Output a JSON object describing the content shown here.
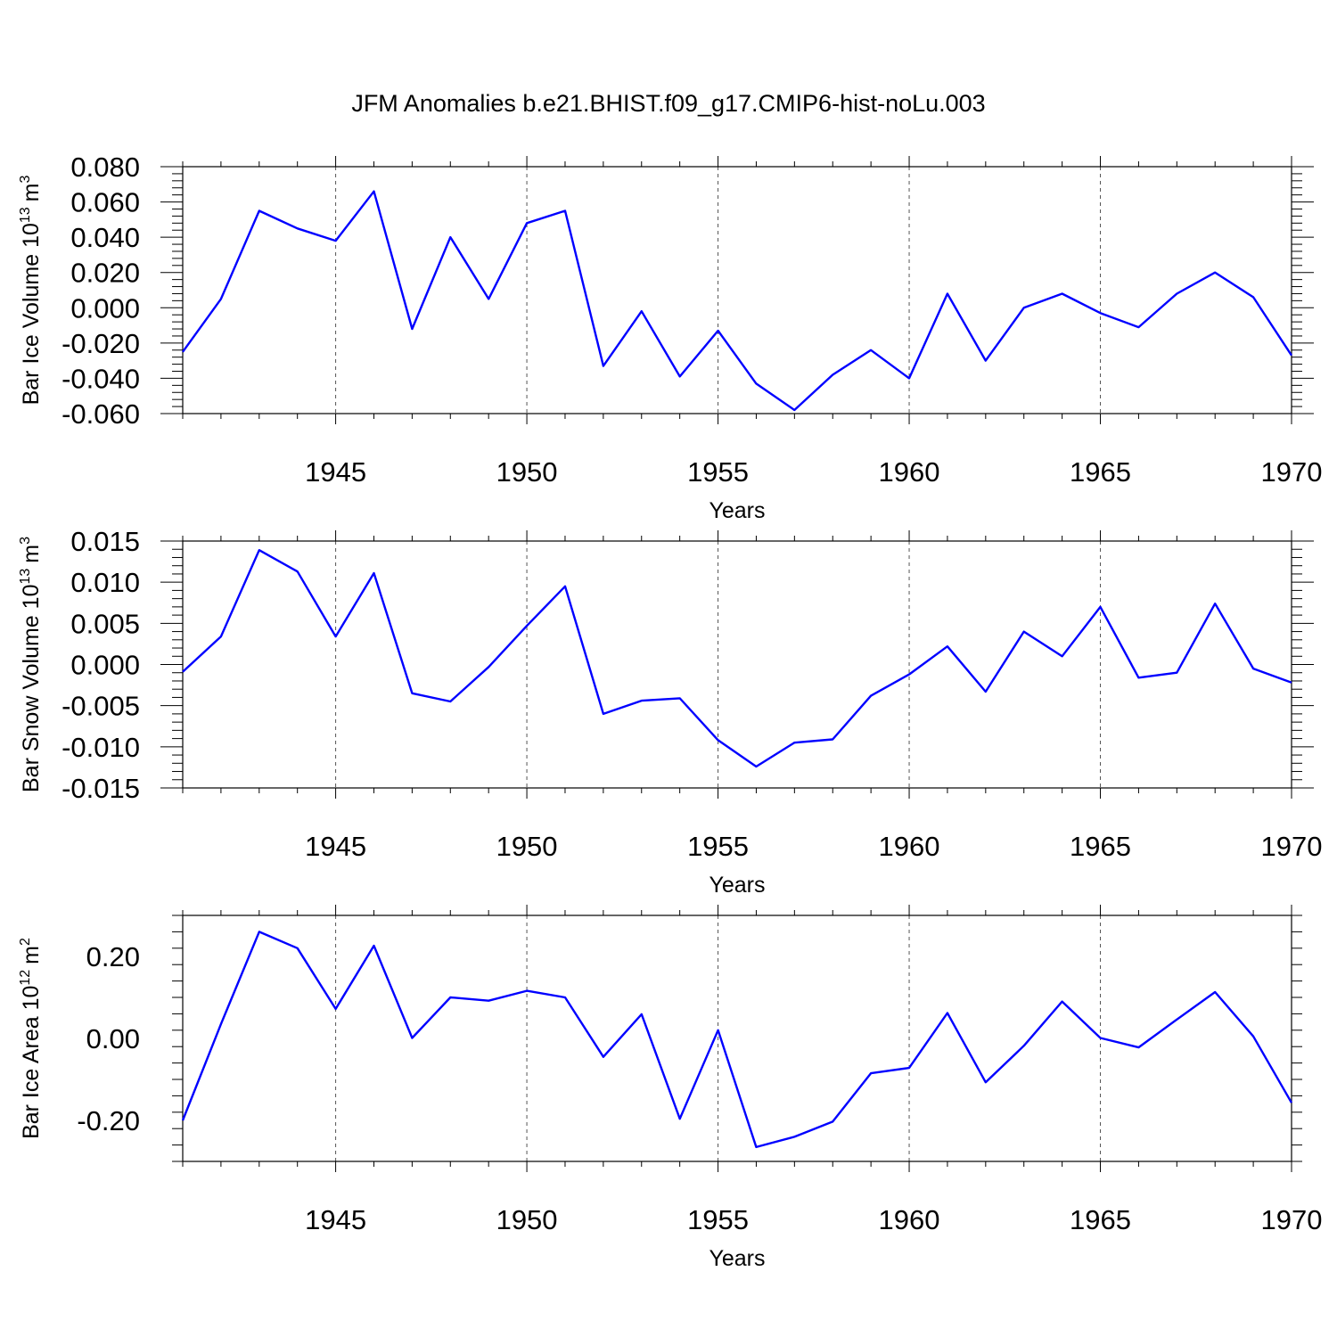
{
  "figure": {
    "title": "JFM Anomalies b.e21.BHIST.f09_g17.CMIP6-hist-noLu.003"
  },
  "chart_data": [
    {
      "type": "line",
      "title": "JFM Anomalies b.e21.BHIST.f09_g17.CMIP6-hist-noLu.003",
      "ylabel_main": "Bar Ice Volume 10",
      "ylabel_exp": "13",
      "ylabel_unit": "m",
      "ylabel_unit_exp": "3",
      "xlabel": "Years",
      "xlim": [
        1941,
        1970
      ],
      "ylim": [
        -0.06,
        0.08
      ],
      "yticks": [
        -0.06,
        -0.04,
        -0.02,
        0.0,
        0.02,
        0.04,
        0.06,
        0.08
      ],
      "ytick_labels": [
        "-0.060",
        "-0.040",
        "-0.020",
        "0.000",
        "0.020",
        "0.040",
        "0.060",
        "0.080"
      ],
      "xticks": [
        1945,
        1950,
        1955,
        1960,
        1965,
        1970
      ],
      "xtick_labels": [
        "1945",
        "1950",
        "1955",
        "1960",
        "1965",
        "1970"
      ],
      "grid_x": [
        1945,
        1950,
        1955,
        1960,
        1965
      ],
      "series": [
        {
          "name": "Bar Ice Volume",
          "color": "#0000ff",
          "x": [
            1941,
            1942,
            1943,
            1944,
            1945,
            1946,
            1947,
            1948,
            1949,
            1950,
            1951,
            1952,
            1953,
            1954,
            1955,
            1956,
            1957,
            1958,
            1959,
            1960,
            1961,
            1962,
            1963,
            1964,
            1965,
            1966,
            1967,
            1968,
            1969,
            1970
          ],
          "values": [
            -0.025,
            0.005,
            0.055,
            0.045,
            0.038,
            0.066,
            -0.012,
            0.04,
            0.005,
            0.048,
            0.055,
            -0.033,
            -0.002,
            -0.039,
            -0.013,
            -0.043,
            -0.058,
            -0.038,
            -0.024,
            -0.04,
            0.008,
            -0.03,
            0.0,
            0.008,
            -0.003,
            -0.011,
            0.008,
            0.02,
            0.006,
            -0.027
          ]
        }
      ]
    },
    {
      "type": "line",
      "ylabel_main": "Bar Snow Volume 10",
      "ylabel_exp": "13",
      "ylabel_unit": "m",
      "ylabel_unit_exp": "3",
      "xlabel": "Years",
      "xlim": [
        1941,
        1970
      ],
      "ylim": [
        -0.015,
        0.015
      ],
      "yticks": [
        -0.015,
        -0.01,
        -0.005,
        0.0,
        0.005,
        0.01,
        0.015
      ],
      "ytick_labels": [
        "-0.015",
        "-0.010",
        "-0.005",
        "0.000",
        "0.005",
        "0.010",
        "0.015"
      ],
      "xticks": [
        1945,
        1950,
        1955,
        1960,
        1965,
        1970
      ],
      "xtick_labels": [
        "1945",
        "1950",
        "1955",
        "1960",
        "1965",
        "1970"
      ],
      "grid_x": [
        1945,
        1950,
        1955,
        1960,
        1965
      ],
      "series": [
        {
          "name": "Bar Snow Volume",
          "color": "#0000ff",
          "x": [
            1941,
            1942,
            1943,
            1944,
            1945,
            1946,
            1947,
            1948,
            1949,
            1950,
            1951,
            1952,
            1953,
            1954,
            1955,
            1956,
            1957,
            1958,
            1959,
            1960,
            1961,
            1962,
            1963,
            1964,
            1965,
            1966,
            1967,
            1968,
            1969,
            1970
          ],
          "values": [
            -0.0009,
            0.0034,
            0.0139,
            0.0113,
            0.0034,
            0.0111,
            -0.0035,
            -0.0045,
            -0.0003,
            0.0047,
            0.0095,
            -0.006,
            -0.0044,
            -0.0041,
            -0.0092,
            -0.0124,
            -0.0095,
            -0.0091,
            -0.0038,
            -0.0012,
            0.0022,
            -0.0033,
            0.004,
            0.001,
            0.007,
            -0.0016,
            -0.001,
            0.0074,
            -0.0005,
            -0.0022
          ]
        }
      ]
    },
    {
      "type": "line",
      "ylabel_main": "Bar Ice Area 10",
      "ylabel_exp": "12",
      "ylabel_unit": "m",
      "ylabel_unit_exp": "2",
      "xlabel": "Years",
      "xlim": [
        1941,
        1970
      ],
      "ylim": [
        -0.3,
        0.3
      ],
      "yticks": [
        -0.2,
        0.0,
        0.2
      ],
      "ytick_labels": [
        "-0.20",
        "0.00",
        "0.20"
      ],
      "xticks": [
        1945,
        1950,
        1955,
        1960,
        1965,
        1970
      ],
      "xtick_labels": [
        "1945",
        "1950",
        "1955",
        "1960",
        "1965",
        "1970"
      ],
      "grid_x": [
        1945,
        1950,
        1955,
        1960,
        1965
      ],
      "series": [
        {
          "name": "Bar Ice Area",
          "color": "#0000ff",
          "x": [
            1941,
            1942,
            1943,
            1944,
            1945,
            1946,
            1947,
            1948,
            1949,
            1950,
            1951,
            1952,
            1953,
            1954,
            1955,
            1956,
            1957,
            1958,
            1959,
            1960,
            1961,
            1962,
            1963,
            1964,
            1965,
            1966,
            1967,
            1968,
            1969,
            1970
          ],
          "values": [
            -0.2,
            0.035,
            0.26,
            0.22,
            0.072,
            0.226,
            0.001,
            0.1,
            0.092,
            0.116,
            0.1,
            -0.045,
            0.059,
            -0.196,
            0.02,
            -0.265,
            -0.24,
            -0.203,
            -0.085,
            -0.072,
            0.062,
            -0.107,
            -0.018,
            0.09,
            0.001,
            -0.022,
            0.046,
            0.113,
            0.005,
            -0.157
          ]
        }
      ]
    }
  ]
}
